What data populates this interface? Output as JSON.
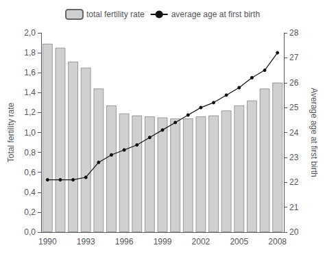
{
  "chart_data": {
    "type": "bar",
    "categories": [
      "1990",
      null,
      null,
      "1993",
      null,
      null,
      "1996",
      null,
      null,
      "1999",
      null,
      null,
      "2002",
      null,
      null,
      "2005",
      null,
      null,
      "2008"
    ],
    "series": [
      {
        "name": "total fertility rate",
        "type": "bar",
        "color": "#d0d0d0",
        "values": [
          1.89,
          1.85,
          1.71,
          1.65,
          1.44,
          1.27,
          1.19,
          1.17,
          1.16,
          1.15,
          1.14,
          1.14,
          1.16,
          1.17,
          1.22,
          1.27,
          1.32,
          1.44,
          1.5
        ]
      },
      {
        "name": "average age at first birth",
        "type": "line",
        "axis": "y2",
        "color": "#111111",
        "marker": "circle",
        "values": [
          22.1,
          22.1,
          22.1,
          22.2,
          22.8,
          23.1,
          23.3,
          23.5,
          23.8,
          24.1,
          24.4,
          24.7,
          25.0,
          25.2,
          25.5,
          25.8,
          26.2,
          26.5,
          27.2
        ]
      }
    ],
    "ylabel": "Total fertility rate",
    "y2label": "Average age at first birth",
    "ylim": [
      0.0,
      2.0
    ],
    "yticks": [
      {
        "value": 0.0,
        "label": "0,0"
      },
      {
        "value": 0.2,
        "label": "0,2"
      },
      {
        "value": 0.4,
        "label": "0,4"
      },
      {
        "value": 0.6,
        "label": "0,6"
      },
      {
        "value": 0.8,
        "label": "0,8"
      },
      {
        "value": 1.0,
        "label": "1,0"
      },
      {
        "value": 1.2,
        "label": "1,2"
      },
      {
        "value": 1.4,
        "label": "1,4"
      },
      {
        "value": 1.6,
        "label": "1,6"
      },
      {
        "value": 1.8,
        "label": "1,8"
      },
      {
        "value": 2.0,
        "label": "2,0"
      }
    ],
    "y2lim": [
      20,
      28
    ],
    "y2ticks": [
      20,
      21,
      22,
      23,
      24,
      25,
      26,
      27,
      28
    ],
    "legend": "top",
    "grid": false
  }
}
